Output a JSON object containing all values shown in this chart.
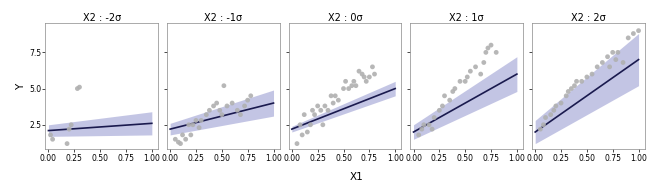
{
  "panels": [
    {
      "title": "X2 : -2σ",
      "slope": 0.5,
      "intercept": 2.1,
      "ci_low_slope": 0.1,
      "ci_low_intercept": 1.7,
      "ci_high_slope": 0.9,
      "ci_high_intercept": 2.5,
      "points": [
        [
          0.02,
          1.8
        ],
        [
          0.04,
          1.5
        ],
        [
          0.18,
          1.2
        ],
        [
          0.2,
          2.2
        ],
        [
          0.22,
          2.5
        ],
        [
          0.28,
          5.0
        ],
        [
          0.3,
          5.1
        ]
      ]
    },
    {
      "title": "X2 : -1σ",
      "slope": 1.8,
      "intercept": 2.2,
      "ci_low_slope": 1.3,
      "ci_low_intercept": 1.8,
      "ci_high_slope": 2.3,
      "ci_high_intercept": 2.6,
      "points": [
        [
          0.05,
          1.5
        ],
        [
          0.08,
          1.3
        ],
        [
          0.1,
          1.2
        ],
        [
          0.12,
          1.8
        ],
        [
          0.15,
          1.5
        ],
        [
          0.18,
          2.5
        ],
        [
          0.2,
          1.8
        ],
        [
          0.22,
          2.5
        ],
        [
          0.25,
          2.8
        ],
        [
          0.28,
          2.3
        ],
        [
          0.3,
          2.8
        ],
        [
          0.35,
          3.2
        ],
        [
          0.38,
          3.5
        ],
        [
          0.42,
          3.8
        ],
        [
          0.45,
          4.0
        ],
        [
          0.48,
          3.5
        ],
        [
          0.5,
          3.2
        ],
        [
          0.52,
          5.2
        ],
        [
          0.55,
          3.8
        ],
        [
          0.6,
          4.0
        ],
        [
          0.65,
          3.5
        ],
        [
          0.68,
          3.2
        ],
        [
          0.72,
          3.8
        ],
        [
          0.75,
          4.2
        ],
        [
          0.78,
          4.5
        ]
      ]
    },
    {
      "title": "X2 : 0σ",
      "slope": 2.8,
      "intercept": 2.2,
      "ci_low_slope": 2.5,
      "ci_low_intercept": 2.0,
      "ci_high_slope": 3.1,
      "ci_high_intercept": 2.4,
      "points": [
        [
          0.05,
          1.2
        ],
        [
          0.08,
          2.5
        ],
        [
          0.1,
          1.8
        ],
        [
          0.12,
          3.2
        ],
        [
          0.15,
          2.0
        ],
        [
          0.18,
          2.5
        ],
        [
          0.2,
          3.5
        ],
        [
          0.22,
          3.2
        ],
        [
          0.25,
          3.8
        ],
        [
          0.28,
          3.5
        ],
        [
          0.3,
          2.5
        ],
        [
          0.32,
          3.8
        ],
        [
          0.35,
          3.5
        ],
        [
          0.38,
          4.5
        ],
        [
          0.4,
          4.0
        ],
        [
          0.42,
          4.5
        ],
        [
          0.45,
          4.2
        ],
        [
          0.5,
          5.0
        ],
        [
          0.52,
          5.5
        ],
        [
          0.55,
          5.0
        ],
        [
          0.58,
          5.2
        ],
        [
          0.6,
          5.5
        ],
        [
          0.62,
          5.2
        ],
        [
          0.65,
          6.2
        ],
        [
          0.68,
          6.0
        ],
        [
          0.7,
          5.8
        ],
        [
          0.72,
          5.5
        ],
        [
          0.75,
          5.8
        ],
        [
          0.78,
          6.5
        ],
        [
          0.8,
          6.0
        ]
      ]
    },
    {
      "title": "X2 : 1σ",
      "slope": 4.0,
      "intercept": 2.0,
      "ci_low_slope": 3.3,
      "ci_low_intercept": 1.5,
      "ci_high_slope": 4.7,
      "ci_high_intercept": 2.5,
      "points": [
        [
          0.05,
          1.8
        ],
        [
          0.08,
          2.2
        ],
        [
          0.1,
          2.5
        ],
        [
          0.15,
          2.5
        ],
        [
          0.18,
          2.2
        ],
        [
          0.2,
          3.0
        ],
        [
          0.25,
          3.5
        ],
        [
          0.28,
          3.8
        ],
        [
          0.3,
          4.5
        ],
        [
          0.35,
          4.2
        ],
        [
          0.38,
          4.8
        ],
        [
          0.4,
          5.0
        ],
        [
          0.45,
          5.5
        ],
        [
          0.5,
          5.5
        ],
        [
          0.52,
          5.8
        ],
        [
          0.55,
          6.2
        ],
        [
          0.6,
          6.5
        ],
        [
          0.65,
          6.0
        ],
        [
          0.68,
          6.8
        ],
        [
          0.7,
          7.5
        ],
        [
          0.72,
          7.8
        ],
        [
          0.75,
          8.0
        ],
        [
          0.8,
          7.5
        ]
      ]
    },
    {
      "title": "X2 : 2σ",
      "slope": 5.0,
      "intercept": 2.0,
      "ci_low_slope": 4.0,
      "ci_low_intercept": 1.2,
      "ci_high_slope": 6.0,
      "ci_high_intercept": 2.8,
      "points": [
        [
          0.05,
          2.2
        ],
        [
          0.08,
          2.5
        ],
        [
          0.1,
          3.0
        ],
        [
          0.15,
          3.2
        ],
        [
          0.18,
          3.5
        ],
        [
          0.2,
          3.8
        ],
        [
          0.25,
          4.0
        ],
        [
          0.3,
          4.5
        ],
        [
          0.32,
          4.8
        ],
        [
          0.35,
          5.0
        ],
        [
          0.38,
          5.2
        ],
        [
          0.4,
          5.5
        ],
        [
          0.45,
          5.5
        ],
        [
          0.5,
          5.8
        ],
        [
          0.55,
          6.0
        ],
        [
          0.6,
          6.5
        ],
        [
          0.65,
          6.8
        ],
        [
          0.7,
          7.2
        ],
        [
          0.72,
          6.5
        ],
        [
          0.75,
          7.5
        ],
        [
          0.78,
          7.0
        ],
        [
          0.8,
          7.5
        ],
        [
          0.85,
          6.8
        ],
        [
          0.9,
          8.5
        ],
        [
          0.95,
          8.8
        ],
        [
          1.0,
          9.0
        ]
      ]
    }
  ],
  "line_color": "#1a1a4e",
  "ci_color": "#7b7fc4",
  "ci_alpha": 0.45,
  "point_color": "#b0b0b0",
  "point_size": 12,
  "xlabel": "X1",
  "ylabel": "Y",
  "xlim": [
    -0.03,
    1.06
  ],
  "ylim": [
    0.8,
    9.5
  ],
  "xticks": [
    0.0,
    0.25,
    0.5,
    0.75,
    1.0
  ],
  "yticks": [
    2.5,
    5.0,
    7.5
  ],
  "bg_color": "#ffffff",
  "panel_bg": "#ffffff",
  "title_fontsize": 7,
  "tick_fontsize": 5.5,
  "label_fontsize": 7.5
}
